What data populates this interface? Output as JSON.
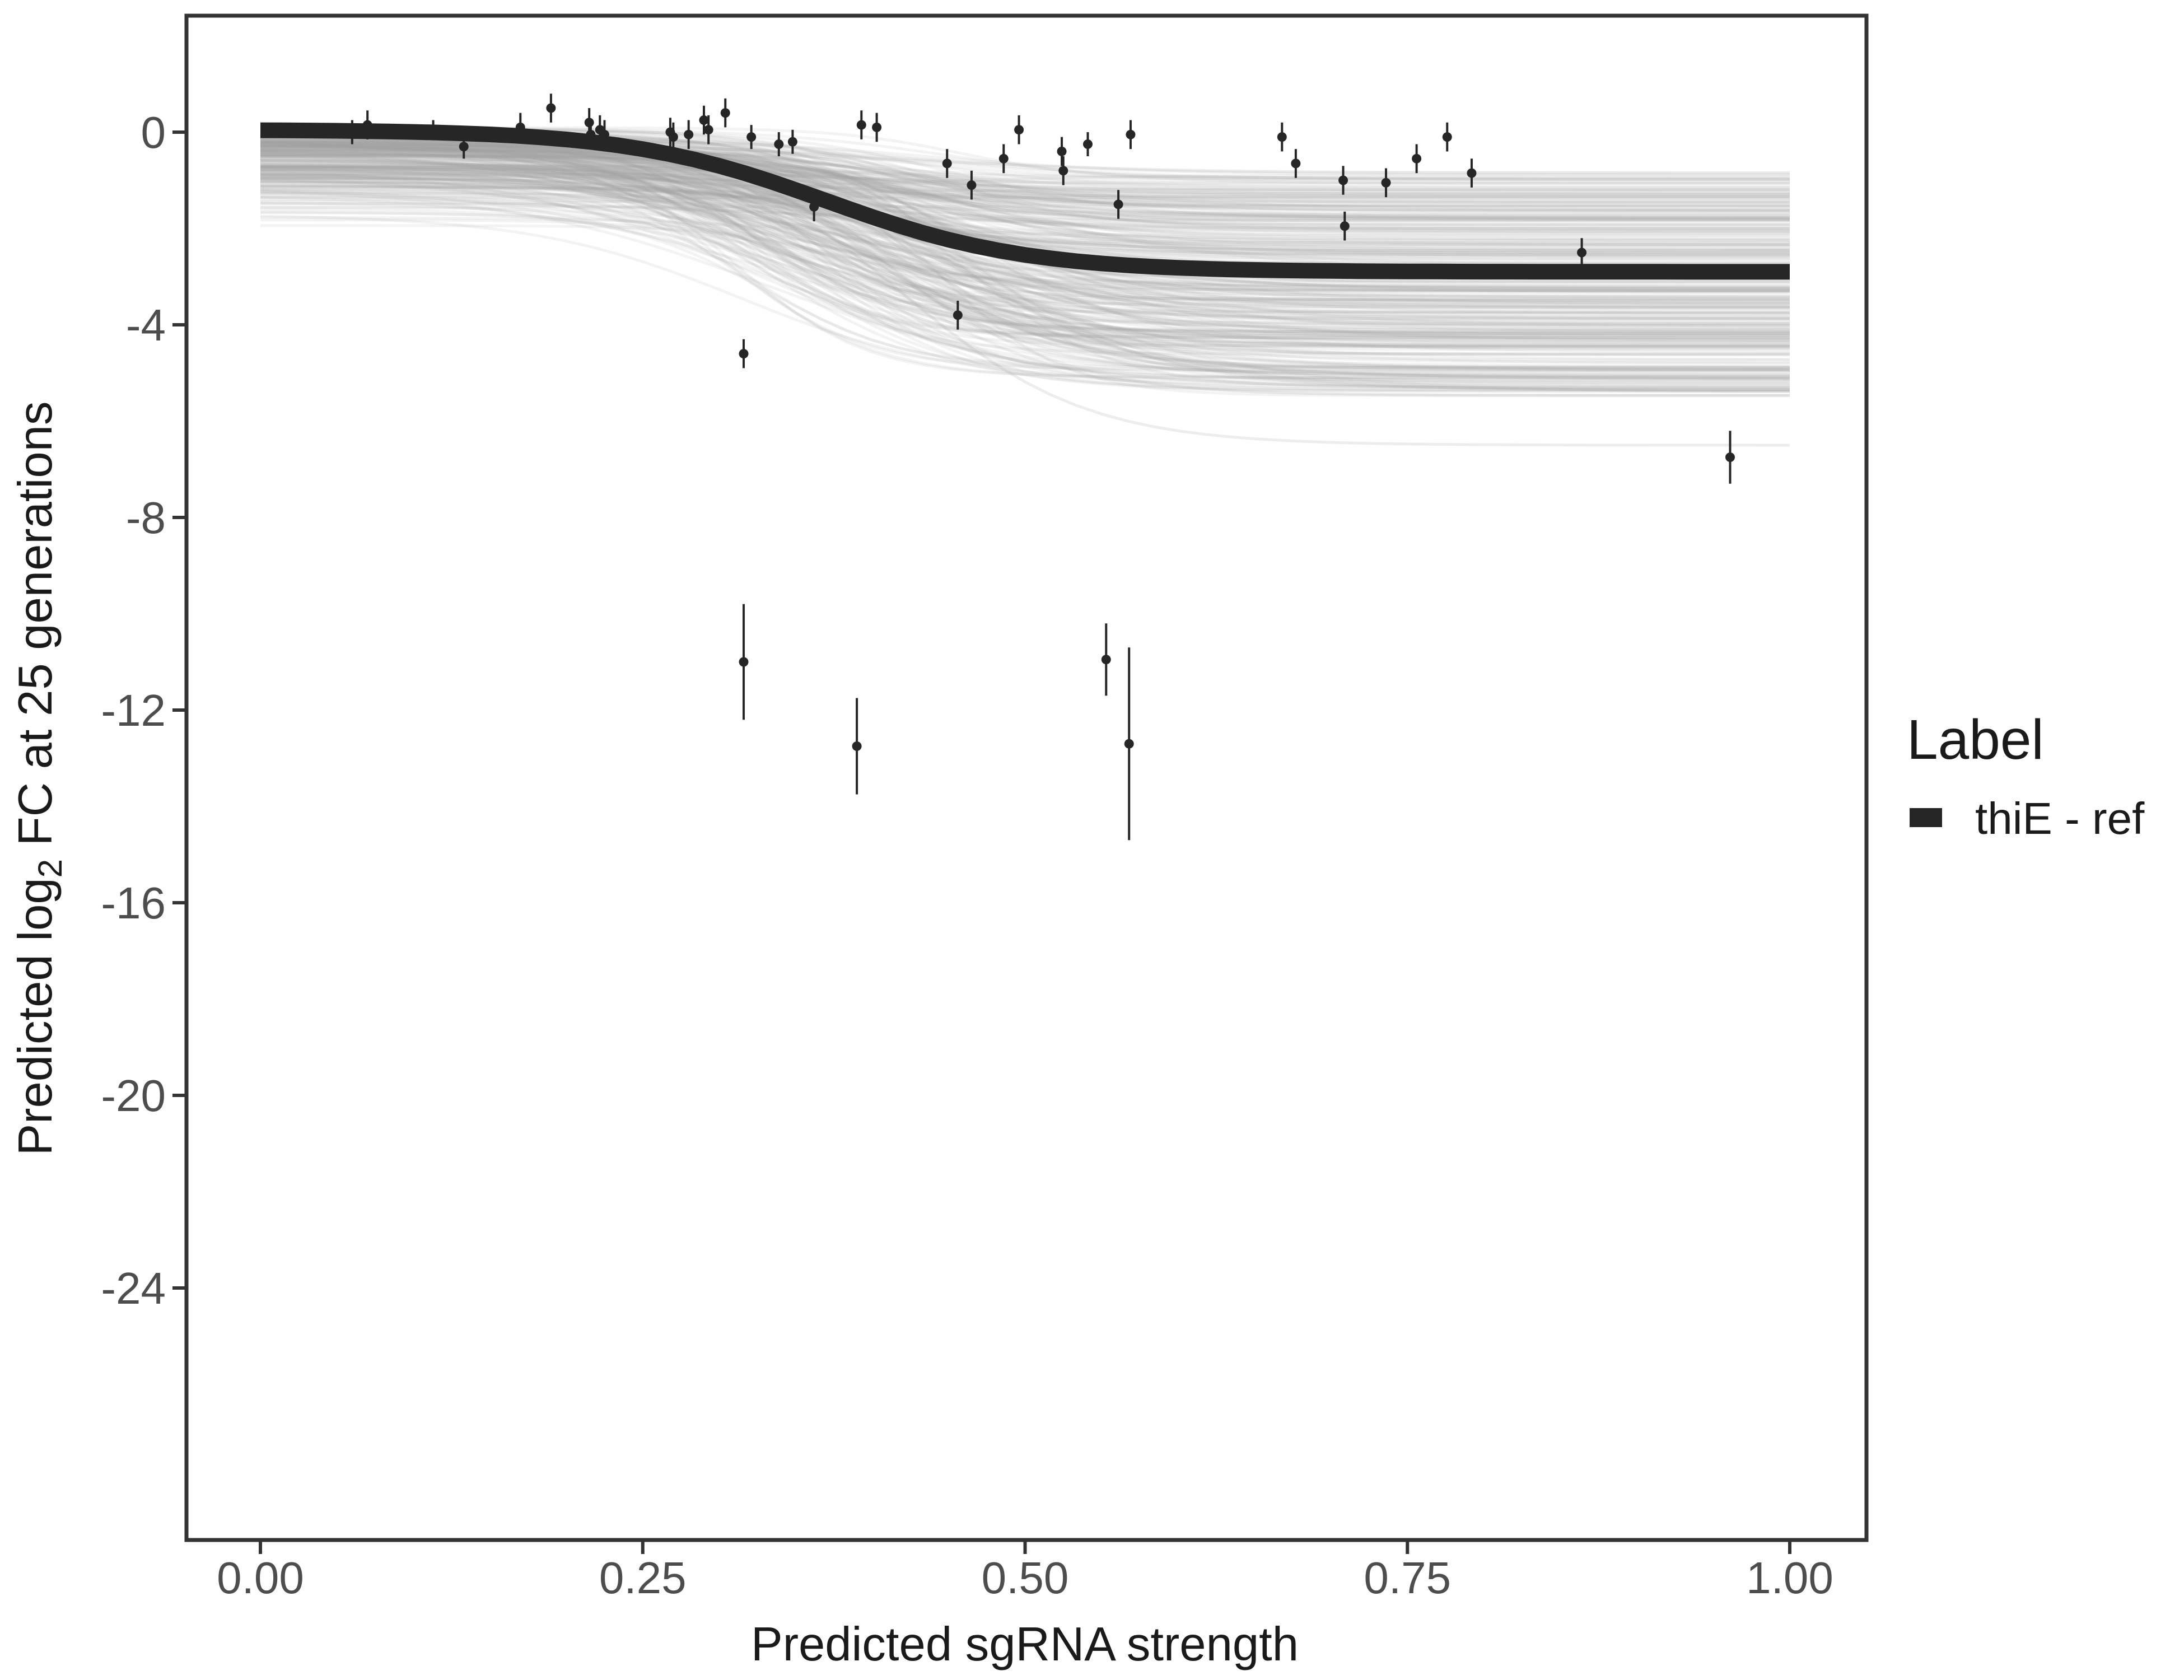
{
  "chart_data": {
    "type": "scatter",
    "xlabel": "Predicted sgRNA strength",
    "ylabel_parts": [
      "Predicted  log",
      "2",
      " FC at 25 generations"
    ],
    "xlim": [
      0,
      1
    ],
    "ylim": [
      -29.5,
      2.4
    ],
    "x_ticks": [
      0,
      0.25,
      0.5,
      0.75,
      1
    ],
    "x_tick_labels": [
      "0.00",
      "0.25",
      "0.50",
      "0.75",
      "1.00"
    ],
    "y_ticks": [
      0,
      -4,
      -8,
      -12,
      -16,
      -20,
      -24
    ],
    "y_tick_labels": [
      "0",
      "-4",
      "-8",
      "-12",
      "-16",
      "-20",
      "-24"
    ],
    "grid": false,
    "legend": {
      "title": "Label",
      "position": "right",
      "entries": [
        {
          "label": "thiE - ref",
          "color": "#262626"
        }
      ]
    },
    "fit_curve": {
      "name": "thiE - ref",
      "color": "#262626",
      "model": "sigmoid",
      "top": 0.05,
      "bottom": -2.9,
      "midpoint": 0.37,
      "width": 0.065
    },
    "posterior_band": {
      "color": "#a6a6a6",
      "draws": 300,
      "top_range": [
        -2.2,
        0.1
      ],
      "bottom_range": [
        -5.5,
        -0.8
      ],
      "outlier_bottom": -6.5
    },
    "points": [
      {
        "x": 0.06,
        "y": 0.0,
        "err": 0.25
      },
      {
        "x": 0.07,
        "y": 0.15,
        "err": 0.3
      },
      {
        "x": 0.113,
        "y": 0.05,
        "err": 0.2
      },
      {
        "x": 0.133,
        "y": -0.3,
        "err": 0.25
      },
      {
        "x": 0.17,
        "y": 0.1,
        "err": 0.3
      },
      {
        "x": 0.19,
        "y": 0.5,
        "err": 0.3
      },
      {
        "x": 0.215,
        "y": 0.2,
        "err": 0.3
      },
      {
        "x": 0.216,
        "y": -0.05,
        "err": 0.3
      },
      {
        "x": 0.222,
        "y": 0.05,
        "err": 0.3
      },
      {
        "x": 0.225,
        "y": -0.05,
        "err": 0.3
      },
      {
        "x": 0.268,
        "y": 0.0,
        "err": 0.3
      },
      {
        "x": 0.27,
        "y": -0.1,
        "err": 0.3
      },
      {
        "x": 0.28,
        "y": -0.05,
        "err": 0.3
      },
      {
        "x": 0.29,
        "y": 0.25,
        "err": 0.3
      },
      {
        "x": 0.293,
        "y": 0.05,
        "err": 0.3
      },
      {
        "x": 0.304,
        "y": 0.4,
        "err": 0.3
      },
      {
        "x": 0.316,
        "y": -4.6,
        "err": 0.3
      },
      {
        "x": 0.316,
        "y": -11.0,
        "err": 1.2
      },
      {
        "x": 0.321,
        "y": -0.1,
        "err": 0.25
      },
      {
        "x": 0.339,
        "y": -0.25,
        "err": 0.25
      },
      {
        "x": 0.348,
        "y": -0.2,
        "err": 0.25
      },
      {
        "x": 0.362,
        "y": -1.55,
        "err": 0.3
      },
      {
        "x": 0.39,
        "y": -12.75,
        "err": 1.0
      },
      {
        "x": 0.393,
        "y": 0.15,
        "err": 0.3
      },
      {
        "x": 0.403,
        "y": 0.1,
        "err": 0.3
      },
      {
        "x": 0.449,
        "y": -0.65,
        "err": 0.3
      },
      {
        "x": 0.456,
        "y": -3.8,
        "err": 0.3
      },
      {
        "x": 0.465,
        "y": -1.1,
        "err": 0.3
      },
      {
        "x": 0.486,
        "y": -0.55,
        "err": 0.3
      },
      {
        "x": 0.496,
        "y": 0.05,
        "err": 0.3
      },
      {
        "x": 0.524,
        "y": -0.4,
        "err": 0.3
      },
      {
        "x": 0.525,
        "y": -0.8,
        "err": 0.3
      },
      {
        "x": 0.541,
        "y": -0.25,
        "err": 0.25
      },
      {
        "x": 0.553,
        "y": -10.95,
        "err": 0.75
      },
      {
        "x": 0.561,
        "y": -1.5,
        "err": 0.3
      },
      {
        "x": 0.568,
        "y": -12.7,
        "err": 2.0
      },
      {
        "x": 0.569,
        "y": -0.05,
        "err": 0.3
      },
      {
        "x": 0.668,
        "y": -0.1,
        "err": 0.3
      },
      {
        "x": 0.677,
        "y": -0.65,
        "err": 0.3
      },
      {
        "x": 0.708,
        "y": -1.0,
        "err": 0.3
      },
      {
        "x": 0.709,
        "y": -1.95,
        "err": 0.3
      },
      {
        "x": 0.736,
        "y": -1.05,
        "err": 0.3
      },
      {
        "x": 0.756,
        "y": -0.55,
        "err": 0.3
      },
      {
        "x": 0.776,
        "y": -0.1,
        "err": 0.3
      },
      {
        "x": 0.792,
        "y": -0.85,
        "err": 0.3
      },
      {
        "x": 0.864,
        "y": -2.5,
        "err": 0.3
      },
      {
        "x": 0.961,
        "y": -6.75,
        "err": 0.55
      }
    ]
  }
}
